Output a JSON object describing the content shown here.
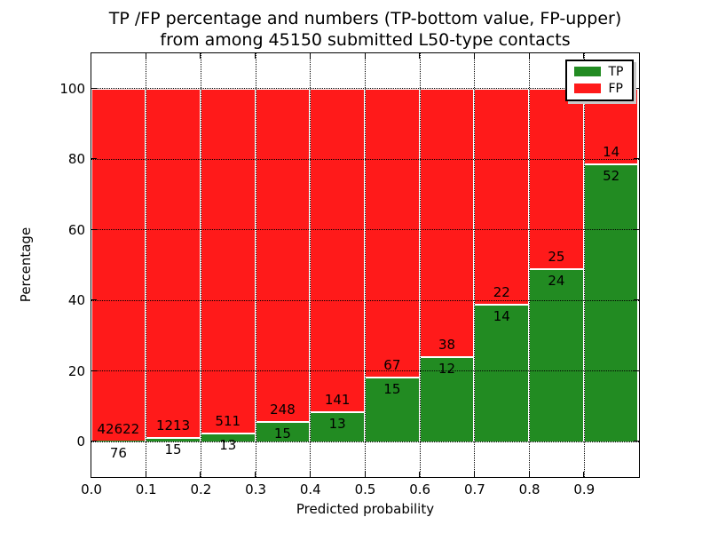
{
  "figure": {
    "title_line1": "TP /FP percentage and numbers (TP-bottom value, FP-upper)",
    "title_line2": "from among 45150 submitted L50-type contacts"
  },
  "chart_data": {
    "type": "bar",
    "stacked": true,
    "normalized": "each bin scaled so TP% + FP% = 100",
    "title": "TP /FP percentage and numbers (TP-bottom value, FP-upper) from among 45150 submitted L50-type contacts",
    "xlabel": "Predicted probability",
    "ylabel": "Percentage",
    "total_contacts": 45150,
    "xlim": [
      0.0,
      1.0
    ],
    "ylim": [
      -10,
      110
    ],
    "xticks": [
      "0.0",
      "0.1",
      "0.2",
      "0.3",
      "0.4",
      "0.5",
      "0.6",
      "0.7",
      "0.8",
      "0.9"
    ],
    "yticks": [
      0,
      20,
      40,
      60,
      80,
      100
    ],
    "grid": {
      "enabled": true,
      "style": "dotted",
      "color": "#000000"
    },
    "legend": {
      "position": "upper-right",
      "entries": [
        {
          "label": "TP",
          "color": "#228b22"
        },
        {
          "label": "FP",
          "color": "#ff1a1a"
        }
      ]
    },
    "bins": [
      {
        "x_start": 0.0,
        "x_end": 0.1,
        "tp": 76,
        "fp": 42622
      },
      {
        "x_start": 0.1,
        "x_end": 0.2,
        "tp": 15,
        "fp": 1213
      },
      {
        "x_start": 0.2,
        "x_end": 0.3,
        "tp": 13,
        "fp": 511
      },
      {
        "x_start": 0.3,
        "x_end": 0.4,
        "tp": 15,
        "fp": 248
      },
      {
        "x_start": 0.4,
        "x_end": 0.5,
        "tp": 13,
        "fp": 141
      },
      {
        "x_start": 0.5,
        "x_end": 0.6,
        "tp": 15,
        "fp": 67
      },
      {
        "x_start": 0.6,
        "x_end": 0.7,
        "tp": 12,
        "fp": 38
      },
      {
        "x_start": 0.7,
        "x_end": 0.8,
        "tp": 14,
        "fp": 22
      },
      {
        "x_start": 0.8,
        "x_end": 0.9,
        "tp": 24,
        "fp": 25
      },
      {
        "x_start": 0.9,
        "x_end": 1.0,
        "tp": 52,
        "fp": 14
      }
    ],
    "colors": {
      "tp": "#228b22",
      "fp": "#ff1a1a",
      "background": "#ffffff",
      "text": "#000000"
    }
  }
}
